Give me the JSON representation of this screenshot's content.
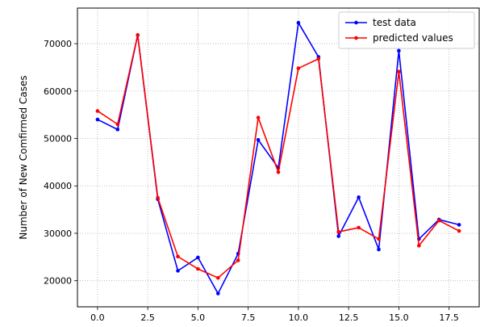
{
  "chart_data": {
    "type": "line",
    "title": "",
    "xlabel": "",
    "ylabel": "Number of New Comfirmed Cases",
    "x": [
      0,
      1,
      2,
      3,
      4,
      5,
      6,
      7,
      8,
      9,
      10,
      11,
      12,
      13,
      14,
      15,
      16,
      17,
      18
    ],
    "xlim": [
      -1,
      19
    ],
    "ylim": [
      14500,
      77500
    ],
    "xticks": [
      0.0,
      2.5,
      5.0,
      7.5,
      10.0,
      12.5,
      15.0,
      17.5
    ],
    "xtick_labels": [
      "0.0",
      "2.5",
      "5.0",
      "7.5",
      "10.0",
      "12.5",
      "15.0",
      "17.5"
    ],
    "yticks": [
      20000,
      30000,
      40000,
      50000,
      60000,
      70000
    ],
    "ytick_labels": [
      "20000",
      "30000",
      "40000",
      "50000",
      "60000",
      "70000"
    ],
    "grid": true,
    "legend_position": "top-right",
    "series": [
      {
        "name": "test data",
        "color": "#0000ff",
        "values": [
          54000,
          51900,
          71800,
          37200,
          22100,
          24900,
          17300,
          25700,
          49700,
          43800,
          74400,
          67200,
          29400,
          37600,
          26600,
          68500,
          28800,
          32900,
          31800
        ]
      },
      {
        "name": "predicted values",
        "color": "#ff0000",
        "values": [
          55800,
          53000,
          71800,
          37500,
          25100,
          22500,
          20600,
          24300,
          54400,
          42900,
          64800,
          66800,
          30300,
          31200,
          28800,
          64100,
          27400,
          32700,
          30500
        ]
      }
    ]
  }
}
